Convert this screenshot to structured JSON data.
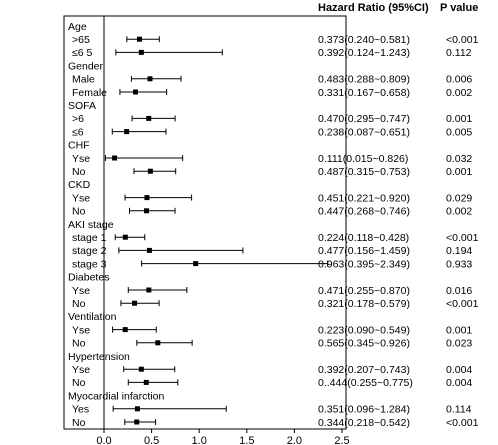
{
  "headers": {
    "ratio": "Hazard Ratio (95%CI)",
    "p": "P value"
  },
  "chart_data": {
    "type": "forest",
    "xlim": [
      0,
      2.5
    ],
    "xticks": [
      "0.0",
      "0.5",
      "1.0",
      "1.5",
      "2.0",
      "2.5"
    ],
    "xtick_values": [
      0,
      0.5,
      1.0,
      1.5,
      2.0,
      2.5
    ],
    "reference_line": 0,
    "rows": [
      {
        "type": "group",
        "label": "Age"
      },
      {
        "type": "item",
        "label": ">65",
        "hr": 0.373,
        "lo": 0.24,
        "hi": 0.581,
        "ci": "0.373(0.240~0.581)",
        "p": "<0.001"
      },
      {
        "type": "item",
        "label": "≤6 5",
        "hr": 0.392,
        "lo": 0.124,
        "hi": 1.243,
        "ci": "0.392(0.124~1.243)",
        "p": "0.112"
      },
      {
        "type": "group",
        "label": "Gender"
      },
      {
        "type": "item",
        "label": "Male",
        "hr": 0.483,
        "lo": 0.288,
        "hi": 0.809,
        "ci": "0.483(0.288~0.809)",
        "p": "0.006"
      },
      {
        "type": "item",
        "label": "Female",
        "hr": 0.331,
        "lo": 0.167,
        "hi": 0.658,
        "ci": "0.331(0.167~0.658)",
        "p": "0.002"
      },
      {
        "type": "group",
        "label": "SOFA"
      },
      {
        "type": "item",
        "label": ">6",
        "hr": 0.47,
        "lo": 0.295,
        "hi": 0.747,
        "ci": "0.470(0.295~0.747)",
        "p": "0.001"
      },
      {
        "type": "item",
        "label": "≤6",
        "hr": 0.238,
        "lo": 0.087,
        "hi": 0.651,
        "ci": "0.238(0.087~0.651)",
        "p": "0.005"
      },
      {
        "type": "group",
        "label": "CHF"
      },
      {
        "type": "item",
        "label": "Yse",
        "hr": 0.111,
        "lo": 0.015,
        "hi": 0.826,
        "ci": "0.111(0.015~0.826)",
        "p": "0.032"
      },
      {
        "type": "item",
        "label": "No",
        "hr": 0.487,
        "lo": 0.315,
        "hi": 0.753,
        "ci": "0.487(0.315~0.753)",
        "p": "0.001"
      },
      {
        "type": "group",
        "label": "CKD"
      },
      {
        "type": "item",
        "label": "Yse",
        "hr": 0.451,
        "lo": 0.221,
        "hi": 0.92,
        "ci": "0.451(0.221~0.920)",
        "p": "0.029"
      },
      {
        "type": "item",
        "label": "No",
        "hr": 0.447,
        "lo": 0.268,
        "hi": 0.746,
        "ci": "0.447(0.268~0.746)",
        "p": "0.002"
      },
      {
        "type": "group",
        "label": "AKI stage"
      },
      {
        "type": "item",
        "label": "stage 1",
        "hr": 0.224,
        "lo": 0.118,
        "hi": 0.428,
        "ci": "0.224(0.118~0.428)",
        "p": "<0.001"
      },
      {
        "type": "item",
        "label": "stage 2",
        "hr": 0.477,
        "lo": 0.156,
        "hi": 1.459,
        "ci": "0.477(0.156~1.459)",
        "p": "0.194"
      },
      {
        "type": "item",
        "label": "stage 3",
        "hr": 0.963,
        "lo": 0.395,
        "hi": 2.349,
        "ci": "0.963(0.395~2.349)",
        "p": "0.933"
      },
      {
        "type": "group",
        "label": "Diabetes"
      },
      {
        "type": "item",
        "label": "Yse",
        "hr": 0.471,
        "lo": 0.255,
        "hi": 0.87,
        "ci": "0.471(0.255~0.870)",
        "p": "0.016"
      },
      {
        "type": "item",
        "label": "No",
        "hr": 0.321,
        "lo": 0.178,
        "hi": 0.579,
        "ci": "0.321(0.178~0.579)",
        "p": "<0.001"
      },
      {
        "type": "group",
        "label": "Ventilation"
      },
      {
        "type": "item",
        "label": "Yse",
        "hr": 0.223,
        "lo": 0.09,
        "hi": 0.549,
        "ci": "0.223(0.090~0.549)",
        "p": "0.001"
      },
      {
        "type": "item",
        "label": "No",
        "hr": 0.565,
        "lo": 0.345,
        "hi": 0.926,
        "ci": "0.565(0.345~0.926)",
        "p": "0.023"
      },
      {
        "type": "group",
        "label": "Hypertension"
      },
      {
        "type": "item",
        "label": "Yse",
        "hr": 0.392,
        "lo": 0.207,
        "hi": 0.743,
        "ci": "0.392(0.207~0.743)",
        "p": "0.004"
      },
      {
        "type": "item",
        "label": "No",
        "hr": 0.444,
        "lo": 0.255,
        "hi": 0.775,
        "ci": "0..444(0.255~0.775)",
        "p": "0.004"
      },
      {
        "type": "group",
        "label": "Myocardial infarction"
      },
      {
        "type": "item",
        "label": "Yes",
        "hr": 0.351,
        "lo": 0.096,
        "hi": 1.284,
        "ci": "0.351(0.096~1.284)",
        "p": "0.114"
      },
      {
        "type": "item",
        "label": "No",
        "hr": 0.344,
        "lo": 0.218,
        "hi": 0.542,
        "ci": "0.344(0.218~0.542)",
        "p": "<0.001"
      }
    ]
  }
}
